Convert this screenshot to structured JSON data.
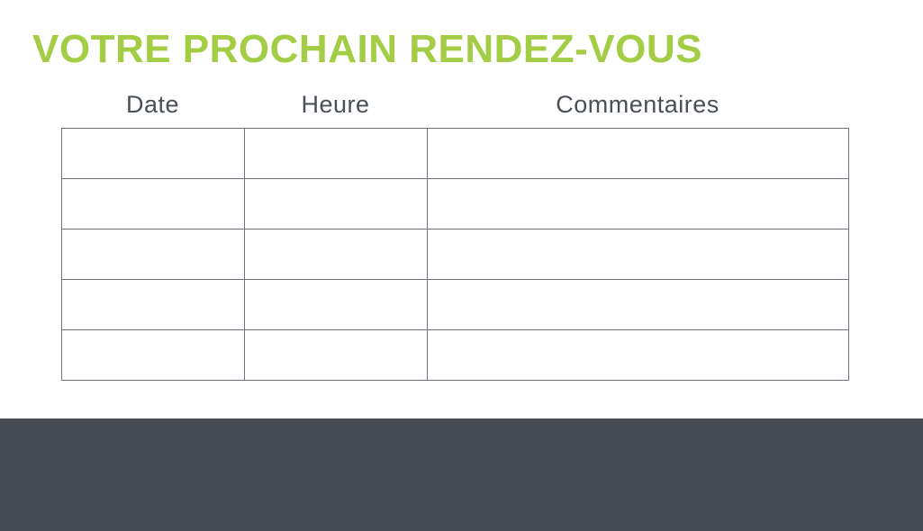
{
  "page": {
    "title": "VOTRE PROCHAIN RENDEZ-VOUS"
  },
  "table": {
    "columns": [
      {
        "label": "Date"
      },
      {
        "label": "Heure"
      },
      {
        "label": "Commentaires"
      }
    ],
    "rows": [
      [
        "",
        "",
        ""
      ],
      [
        "",
        "",
        ""
      ],
      [
        "",
        "",
        ""
      ],
      [
        "",
        "",
        ""
      ],
      [
        "",
        "",
        ""
      ]
    ]
  },
  "colors": {
    "accent_green": "#a2cd44",
    "header_text": "#4a5058",
    "table_border": "#6f747c",
    "footer_band": "#474b54"
  }
}
